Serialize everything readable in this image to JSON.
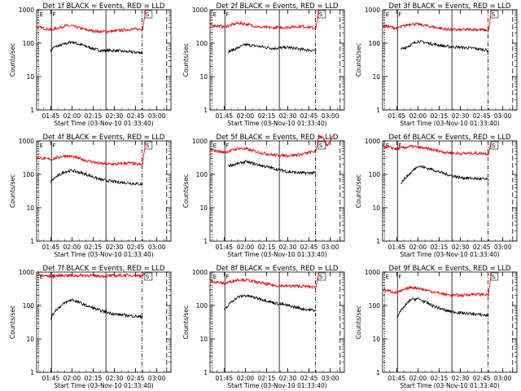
{
  "chart_data": [
    {
      "type": "line",
      "title": "Det 1f BLACK = Events, RED = LLD",
      "xlabel": "Start Time (03-Nov-10 01:33:40)",
      "ylabel": "Counts/sec",
      "x_ticks": [
        "01:45",
        "02:00",
        "02:15",
        "02:30",
        "02:45",
        "03:00"
      ],
      "y_ticks": [
        "1",
        "10",
        "100",
        "1000"
      ],
      "ylim": [
        1,
        1000
      ],
      "y_scale": "log",
      "flags": [
        "E",
        "F",
        "S"
      ],
      "colors": {
        "events": "#000000",
        "lld": "#dd0000"
      },
      "series": [
        {
          "name": "Events",
          "values": [
            [
              "01:45",
              60
            ],
            [
              "01:47",
              75
            ],
            [
              "01:55",
              95
            ],
            [
              "02:00",
              110
            ],
            [
              "02:10",
              80
            ],
            [
              "02:20",
              60
            ],
            [
              "02:30",
              60
            ],
            [
              "02:40",
              55
            ],
            [
              "02:50",
              52
            ]
          ]
        },
        {
          "name": "LLD",
          "values": [
            [
              "01:35",
              310
            ],
            [
              "01:45",
              250
            ],
            [
              "01:55",
              330
            ],
            [
              "02:00",
              330
            ],
            [
              "02:10",
              250
            ],
            [
              "02:20",
              220
            ],
            [
              "02:30",
              230
            ],
            [
              "02:40",
              260
            ],
            [
              "02:50",
              260
            ],
            [
              "02:52",
              1000
            ]
          ]
        }
      ]
    },
    {
      "type": "line",
      "title": "Det 2f BLACK = Events, RED = LLD",
      "xlabel": "Start Time (03-Nov-10 01:33:40)",
      "ylabel": "Counts/sec",
      "x_ticks": [
        "01:45",
        "02:00",
        "02:15",
        "02:30",
        "02:45",
        "03:00"
      ],
      "y_ticks": [
        "1",
        "10",
        "100",
        "1000"
      ],
      "ylim": [
        1,
        1000
      ],
      "y_scale": "log",
      "flags": [
        "E",
        "F",
        "S"
      ],
      "colors": {
        "events": "#000000",
        "lld": "#dd0000"
      },
      "series": [
        {
          "name": "Events",
          "values": [
            [
              "01:48",
              55
            ],
            [
              "01:50",
              60
            ],
            [
              "02:00",
              90
            ],
            [
              "02:10",
              80
            ],
            [
              "02:20",
              70
            ],
            [
              "02:30",
              75
            ],
            [
              "02:40",
              65
            ],
            [
              "02:50",
              60
            ]
          ]
        },
        {
          "name": "LLD",
          "values": [
            [
              "01:35",
              350
            ],
            [
              "01:45",
              310
            ],
            [
              "01:55",
              400
            ],
            [
              "02:00",
              380
            ],
            [
              "02:10",
              300
            ],
            [
              "02:20",
              290
            ],
            [
              "02:30",
              300
            ],
            [
              "02:40",
              320
            ],
            [
              "02:50",
              280
            ],
            [
              "02:52",
              1000
            ]
          ]
        }
      ]
    },
    {
      "type": "line",
      "title": "Det 3f BLACK = Events, RED = LLD",
      "xlabel": "Start Time (03-Nov-10 01:33:40)",
      "ylabel": "Counts/sec",
      "x_ticks": [
        "01:45",
        "02:00",
        "02:15",
        "02:30",
        "02:45",
        "03:00"
      ],
      "y_ticks": [
        "1",
        "10",
        "100",
        "1000"
      ],
      "ylim": [
        1,
        1000
      ],
      "y_scale": "log",
      "flags": [
        "E",
        "F",
        "S"
      ],
      "colors": {
        "events": "#000000",
        "lld": "#dd0000"
      },
      "series": [
        {
          "name": "Events",
          "values": [
            [
              "01:48",
              65
            ],
            [
              "01:50",
              70
            ],
            [
              "02:00",
              115
            ],
            [
              "02:10",
              95
            ],
            [
              "02:20",
              80
            ],
            [
              "02:30",
              75
            ],
            [
              "02:40",
              70
            ],
            [
              "02:50",
              60
            ]
          ]
        },
        {
          "name": "LLD",
          "values": [
            [
              "01:35",
              340
            ],
            [
              "01:45",
              280
            ],
            [
              "01:55",
              380
            ],
            [
              "02:00",
              370
            ],
            [
              "02:10",
              310
            ],
            [
              "02:20",
              260
            ],
            [
              "02:30",
              250
            ],
            [
              "02:40",
              260
            ],
            [
              "02:50",
              240
            ],
            [
              "02:52",
              1000
            ]
          ]
        }
      ]
    },
    {
      "type": "line",
      "title": "Det 4f BLACK = Events, RED = LLD",
      "xlabel": "Start Time (03-Nov-10 01:33:40)",
      "ylabel": "Counts/sec",
      "x_ticks": [
        "01:45",
        "02:00",
        "02:15",
        "02:30",
        "02:45",
        "03:00"
      ],
      "y_ticks": [
        "1",
        "10",
        "100",
        "1000"
      ],
      "ylim": [
        1,
        1000
      ],
      "y_scale": "log",
      "flags": [
        "E",
        "F",
        "S"
      ],
      "colors": {
        "events": "#000000",
        "lld": "#dd0000"
      },
      "series": [
        {
          "name": "Events",
          "values": [
            [
              "01:45",
              60
            ],
            [
              "01:48",
              80
            ],
            [
              "01:55",
              120
            ],
            [
              "02:00",
              130
            ],
            [
              "02:10",
              100
            ],
            [
              "02:20",
              70
            ],
            [
              "02:30",
              60
            ],
            [
              "02:40",
              55
            ],
            [
              "02:50",
              50
            ]
          ]
        },
        {
          "name": "LLD",
          "values": [
            [
              "01:35",
              320
            ],
            [
              "01:45",
              280
            ],
            [
              "01:55",
              360
            ],
            [
              "02:00",
              340
            ],
            [
              "02:10",
              260
            ],
            [
              "02:20",
              210
            ],
            [
              "02:30",
              200
            ],
            [
              "02:40",
              220
            ],
            [
              "02:50",
              190
            ],
            [
              "02:52",
              1000
            ]
          ]
        }
      ]
    },
    {
      "type": "line",
      "title": "Det 5f BLACK = Events, RED = LLD",
      "xlabel": "Start Time (03-Nov-10 01:33:40)",
      "ylabel": "Counts/sec",
      "x_ticks": [
        "01:45",
        "02:00",
        "02:15",
        "02:30",
        "02:45",
        "03:00"
      ],
      "y_ticks": [
        "1",
        "10",
        "100",
        "1000"
      ],
      "ylim": [
        1,
        1000
      ],
      "y_scale": "log",
      "flags": [
        "E",
        "F",
        "S"
      ],
      "colors": {
        "events": "#000000",
        "lld": "#dd0000"
      },
      "series": [
        {
          "name": "Events",
          "values": [
            [
              "01:48",
              180
            ],
            [
              "01:55",
              210
            ],
            [
              "02:00",
              240
            ],
            [
              "02:10",
              190
            ],
            [
              "02:20",
              150
            ],
            [
              "02:30",
              120
            ],
            [
              "02:40",
              110
            ],
            [
              "02:50",
              110
            ]
          ]
        },
        {
          "name": "LLD",
          "values": [
            [
              "01:35",
              550
            ],
            [
              "01:45",
              450
            ],
            [
              "01:55",
              600
            ],
            [
              "02:00",
              580
            ],
            [
              "02:10",
              450
            ],
            [
              "02:20",
              380
            ],
            [
              "02:30",
              360
            ],
            [
              "02:40",
              400
            ],
            [
              "02:50",
              500
            ],
            [
              "02:52",
              1500
            ],
            [
              "02:55",
              1200
            ],
            [
              "02:58",
              700
            ],
            [
              "03:02",
              1500
            ]
          ]
        }
      ]
    },
    {
      "type": "line",
      "title": "Det 6f BLACK = Events, RED = LLD",
      "xlabel": "Start Time (03-Nov-10 01:33:40)",
      "ylabel": "Counts/sec",
      "x_ticks": [
        "01:45",
        "02:00",
        "02:15",
        "02:30",
        "02:45",
        "03:00"
      ],
      "y_ticks": [
        "1",
        "10",
        "100",
        "1000"
      ],
      "ylim": [
        1,
        1000
      ],
      "y_scale": "log",
      "flags": [
        "E",
        "F",
        "S"
      ],
      "colors": {
        "events": "#000000",
        "lld": "#dd0000"
      },
      "series": [
        {
          "name": "Events",
          "values": [
            [
              "01:48",
              55
            ],
            [
              "01:50",
              70
            ],
            [
              "02:00",
              180
            ],
            [
              "02:10",
              140
            ],
            [
              "02:20",
              100
            ],
            [
              "02:30",
              80
            ],
            [
              "02:40",
              75
            ],
            [
              "02:50",
              70
            ]
          ]
        },
        {
          "name": "LLD",
          "values": [
            [
              "01:35",
              700
            ],
            [
              "01:45",
              580
            ],
            [
              "01:55",
              680
            ],
            [
              "02:00",
              650
            ],
            [
              "02:10",
              550
            ],
            [
              "02:20",
              450
            ],
            [
              "02:30",
              420
            ],
            [
              "02:40",
              430
            ],
            [
              "02:50",
              420
            ],
            [
              "02:52",
              1000
            ]
          ]
        }
      ]
    },
    {
      "type": "line",
      "title": "Det 7f BLACK = Events, RED = LLD",
      "xlabel": "Start Time (03-Nov-10 01:33:40)",
      "ylabel": "Counts/sec",
      "x_ticks": [
        "01:45",
        "02:00",
        "02:15",
        "02:30",
        "02:45",
        "03:00"
      ],
      "y_ticks": [
        "1",
        "10",
        "100",
        "1000"
      ],
      "ylim": [
        1,
        1000
      ],
      "y_scale": "log",
      "flags": [
        "E",
        "F",
        "S"
      ],
      "colors": {
        "events": "#000000",
        "lld": "#dd0000"
      },
      "series": [
        {
          "name": "Events",
          "values": [
            [
              "01:45",
              40
            ],
            [
              "01:48",
              70
            ],
            [
              "01:55",
              120
            ],
            [
              "02:00",
              150
            ],
            [
              "02:10",
              100
            ],
            [
              "02:20",
              70
            ],
            [
              "02:30",
              55
            ],
            [
              "02:40",
              50
            ],
            [
              "02:50",
              45
            ]
          ]
        },
        {
          "name": "LLD",
          "values": [
            [
              "01:35",
              800
            ],
            [
              "01:45",
              750
            ],
            [
              "01:55",
              800
            ],
            [
              "02:00",
              780
            ],
            [
              "02:10",
              800
            ],
            [
              "02:20",
              760
            ],
            [
              "02:30",
              780
            ],
            [
              "02:40",
              800
            ],
            [
              "02:50",
              780
            ],
            [
              "02:52",
              1000
            ]
          ]
        }
      ]
    },
    {
      "type": "line",
      "title": "Det 8f BLACK = Events, RED = LLD",
      "xlabel": "Start Time (03-Nov-10 01:33:40)",
      "ylabel": "Counts/sec",
      "x_ticks": [
        "01:45",
        "02:00",
        "02:15",
        "02:30",
        "02:45",
        "03:00"
      ],
      "y_ticks": [
        "1",
        "10",
        "100",
        "1000"
      ],
      "ylim": [
        1,
        1000
      ],
      "y_scale": "log",
      "flags": [
        "E",
        "F",
        "S"
      ],
      "colors": {
        "events": "#000000",
        "lld": "#dd0000"
      },
      "series": [
        {
          "name": "Events",
          "values": [
            [
              "01:45",
              70
            ],
            [
              "01:50",
              130
            ],
            [
              "01:55",
              180
            ],
            [
              "02:00",
              200
            ],
            [
              "02:10",
              160
            ],
            [
              "02:20",
              120
            ],
            [
              "02:30",
              100
            ],
            [
              "02:40",
              80
            ],
            [
              "02:50",
              70
            ]
          ]
        },
        {
          "name": "LLD",
          "values": [
            [
              "01:35",
              550
            ],
            [
              "01:45",
              450
            ],
            [
              "01:55",
              600
            ],
            [
              "02:00",
              580
            ],
            [
              "02:10",
              480
            ],
            [
              "02:20",
              400
            ],
            [
              "02:30",
              380
            ],
            [
              "02:40",
              380
            ],
            [
              "02:50",
              350
            ],
            [
              "02:52",
              1000
            ]
          ]
        }
      ]
    },
    {
      "type": "line",
      "title": "Det 9f BLACK = Events, RED = LLD",
      "xlabel": "Start Time (03-Nov-10 01:33:40)",
      "ylabel": "Counts/sec",
      "x_ticks": [
        "01:45",
        "02:00",
        "02:15",
        "02:30",
        "02:45",
        "03:00"
      ],
      "y_ticks": [
        "1",
        "10",
        "100",
        "1000"
      ],
      "ylim": [
        1,
        1000
      ],
      "y_scale": "log",
      "flags": [
        "E",
        "F",
        "S"
      ],
      "colors": {
        "events": "#000000",
        "lld": "#dd0000"
      },
      "series": [
        {
          "name": "Events",
          "values": [
            [
              "01:45",
              45
            ],
            [
              "01:50",
              90
            ],
            [
              "01:55",
              150
            ],
            [
              "02:00",
              160
            ],
            [
              "02:10",
              100
            ],
            [
              "02:20",
              70
            ],
            [
              "02:30",
              60
            ],
            [
              "02:40",
              55
            ],
            [
              "02:50",
              50
            ]
          ]
        },
        {
          "name": "LLD",
          "values": [
            [
              "01:35",
              300
            ],
            [
              "01:45",
              240
            ],
            [
              "01:55",
              350
            ],
            [
              "02:00",
              330
            ],
            [
              "02:10",
              260
            ],
            [
              "02:20",
              210
            ],
            [
              "02:30",
              200
            ],
            [
              "02:40",
              220
            ],
            [
              "02:50",
              210
            ],
            [
              "02:52",
              1000
            ]
          ]
        }
      ]
    }
  ]
}
